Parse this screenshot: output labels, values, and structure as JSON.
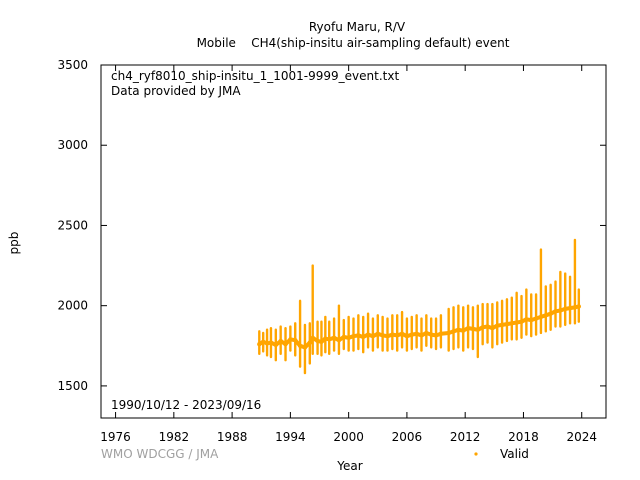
{
  "chart_data": {
    "type": "scatter",
    "title_line1": "Ryofu Maru, R/V",
    "title_line2": "Mobile    CH4(ship-insitu air-sampling default) event",
    "file_label": "ch4_ryf8010_ship-insitu_1_1001-9999_event.txt",
    "provider_label": "Data provided by JMA",
    "date_range_label": "1990/10/12 - 2023/09/16",
    "credit": "WMO WDCGG / JMA",
    "xlabel": "Year",
    "ylabel": "ppb",
    "xlim": [
      1974.5,
      2026.5
    ],
    "ylim": [
      1300,
      3500
    ],
    "xticks": [
      1976,
      1982,
      1988,
      1994,
      2000,
      2006,
      2012,
      2018,
      2024
    ],
    "yticks": [
      1500,
      2000,
      2500,
      3000,
      3500
    ],
    "series_color": "#ffa500",
    "series": [
      {
        "name": "Valid",
        "x": [
          1990.8,
          1991.2,
          1991.6,
          1992.0,
          1992.5,
          1993.0,
          1993.5,
          1994.0,
          1994.5,
          1995.0,
          1995.5,
          1996.0,
          1996.3,
          1996.8,
          1997.2,
          1997.6,
          1998.0,
          1998.5,
          1999.0,
          1999.5,
          2000.0,
          2000.5,
          2001.0,
          2001.5,
          2002.0,
          2002.5,
          2003.0,
          2003.5,
          2004.0,
          2004.5,
          2005.0,
          2005.5,
          2006.0,
          2006.5,
          2007.0,
          2007.5,
          2008.0,
          2008.5,
          2009.0,
          2009.5,
          2010.3,
          2010.8,
          2011.3,
          2011.8,
          2012.3,
          2012.8,
          2013.3,
          2013.8,
          2014.3,
          2014.8,
          2015.3,
          2015.8,
          2016.3,
          2016.8,
          2017.3,
          2017.8,
          2018.3,
          2018.8,
          2019.3,
          2019.8,
          2020.3,
          2020.8,
          2021.3,
          2021.8,
          2022.3,
          2022.8,
          2023.3,
          2023.7
        ],
        "y": [
          1760,
          1775,
          1765,
          1770,
          1755,
          1780,
          1760,
          1790,
          1785,
          1750,
          1740,
          1770,
          1800,
          1780,
          1775,
          1795,
          1790,
          1800,
          1785,
          1805,
          1800,
          1810,
          1815,
          1805,
          1820,
          1810,
          1825,
          1815,
          1810,
          1820,
          1815,
          1825,
          1810,
          1820,
          1825,
          1815,
          1830,
          1820,
          1815,
          1825,
          1830,
          1840,
          1850,
          1845,
          1860,
          1855,
          1850,
          1865,
          1870,
          1860,
          1875,
          1880,
          1885,
          1890,
          1895,
          1900,
          1915,
          1910,
          1920,
          1930,
          1940,
          1950,
          1965,
          1970,
          1980,
          1985,
          1990,
          1995
        ],
        "y_low": [
          1700,
          1715,
          1690,
          1680,
          1660,
          1700,
          1660,
          1720,
          1690,
          1620,
          1580,
          1640,
          1700,
          1700,
          1690,
          1710,
          1700,
          1720,
          1700,
          1730,
          1720,
          1720,
          1730,
          1710,
          1740,
          1720,
          1740,
          1720,
          1720,
          1730,
          1720,
          1740,
          1720,
          1730,
          1740,
          1720,
          1750,
          1740,
          1730,
          1740,
          1720,
          1730,
          1740,
          1720,
          1740,
          1730,
          1680,
          1760,
          1770,
          1740,
          1760,
          1770,
          1780,
          1790,
          1790,
          1800,
          1820,
          1810,
          1820,
          1830,
          1840,
          1850,
          1870,
          1870,
          1880,
          1890,
          1890,
          1900
        ],
        "y_high": [
          1840,
          1830,
          1850,
          1860,
          1850,
          1870,
          1860,
          1870,
          1890,
          2030,
          1880,
          1890,
          2250,
          1900,
          1900,
          1930,
          1900,
          1920,
          2000,
          1910,
          1930,
          1920,
          1940,
          1930,
          1950,
          1920,
          1940,
          1930,
          1920,
          1940,
          1940,
          1960,
          1920,
          1930,
          1940,
          1920,
          1940,
          1920,
          1920,
          1940,
          1980,
          1990,
          2000,
          1990,
          2000,
          1990,
          2000,
          2010,
          2010,
          2010,
          2020,
          2030,
          2040,
          2050,
          2080,
          2060,
          2100,
          2070,
          2070,
          2350,
          2120,
          2130,
          2150,
          2210,
          2200,
          2180,
          2410,
          2100
        ]
      }
    ]
  }
}
